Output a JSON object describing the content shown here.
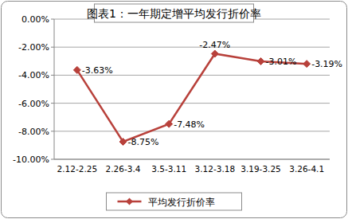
{
  "chart_data": {
    "type": "line",
    "title": "图表1：一年期定增平均发行折价率",
    "categories": [
      "2.12-2.25",
      "2.26-3.4",
      "3.5-3.11",
      "3.12-3.18",
      "3.19-3.25",
      "3.26-4.1"
    ],
    "series": [
      {
        "name": "平均发行折价率",
        "color": "#b8413b",
        "marker": "diamond",
        "values": [
          -3.63,
          -8.75,
          -7.48,
          -2.47,
          -3.01,
          -3.19
        ],
        "value_labels": [
          "-3.63%",
          "-8.75%",
          "-7.48%",
          "-2.47%",
          "-3.01%",
          "-3.19%"
        ]
      }
    ],
    "ylim": [
      -10,
      0
    ],
    "yticks": [
      {
        "value": 0,
        "label": "0.00%"
      },
      {
        "value": -2,
        "label": "-2.00%"
      },
      {
        "value": -4,
        "label": "-4.00%"
      },
      {
        "value": -6,
        "label": "-6.00%"
      },
      {
        "value": -8,
        "label": "-8.00%"
      },
      {
        "value": -10,
        "label": "-10.00%"
      }
    ],
    "grid": true,
    "legend": "bottom",
    "data_labels": true
  }
}
